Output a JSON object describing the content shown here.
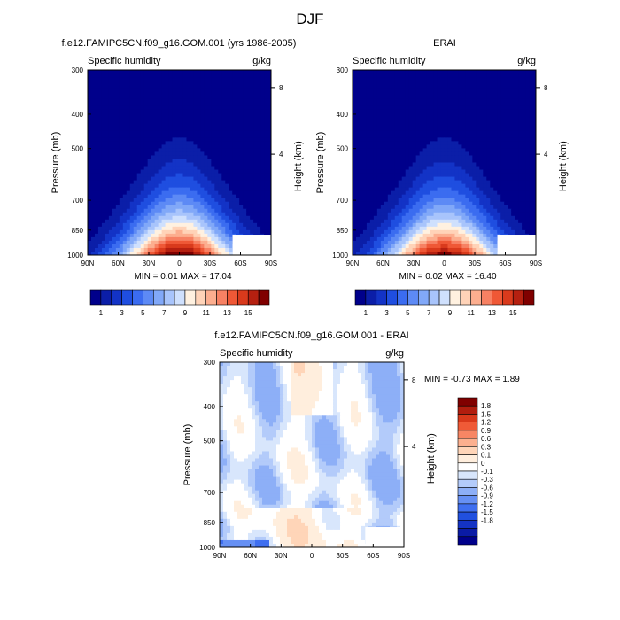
{
  "figure": {
    "title": "DJF"
  },
  "chart_data": [
    {
      "type": "heatmap",
      "title": "f.e12.FAMIPC5CN.f09_g16.GOM.001 (yrs 1986-2005)",
      "subtitle_left": "Specific humidity",
      "subtitle_right": "g/kg",
      "ylabel": "Pressure (mb)",
      "ylabel_right": "Height (km)",
      "x_ticks": [
        "90N",
        "60N",
        "30N",
        "0",
        "30S",
        "60S",
        "90S"
      ],
      "y_ticks": [
        "300",
        "400",
        "500",
        "700",
        "850",
        "1000"
      ],
      "y_ticks_right": [
        "8",
        "4"
      ],
      "xlim": [
        90,
        -90
      ],
      "ylim": [
        1000,
        300
      ],
      "y_scale": "log",
      "min_label": "MIN =  0.01  MAX =  17.04",
      "min": 0.01,
      "max": 17.04,
      "colorbar": {
        "orientation": "horizontal",
        "colors": [
          "#00008b",
          "#0b1ea8",
          "#1333c6",
          "#1f4ee0",
          "#3b6cf0",
          "#5d8af5",
          "#81a8f8",
          "#a8c4fb",
          "#cfe0fd",
          "#fff1e0",
          "#ffd3b8",
          "#fcae8f",
          "#f78163",
          "#ef5836",
          "#d93a1c",
          "#b52010",
          "#800000"
        ],
        "labels": [
          "1",
          "3",
          "5",
          "7",
          "9",
          "11",
          "13",
          "15"
        ]
      }
    },
    {
      "type": "heatmap",
      "title": "ERAI",
      "subtitle_left": "Specific humidity",
      "subtitle_right": "g/kg",
      "ylabel": "Pressure (mb)",
      "ylabel_right": "Height (km)",
      "x_ticks": [
        "90N",
        "60N",
        "30N",
        "0",
        "30S",
        "60S",
        "90S"
      ],
      "y_ticks": [
        "300",
        "400",
        "500",
        "700",
        "850",
        "1000"
      ],
      "y_ticks_right": [
        "8",
        "4"
      ],
      "xlim": [
        90,
        -90
      ],
      "ylim": [
        1000,
        300
      ],
      "y_scale": "log",
      "min_label": "MIN =  0.02  MAX =  16.40",
      "min": 0.02,
      "max": 16.4,
      "colorbar": {
        "orientation": "horizontal",
        "colors": [
          "#00008b",
          "#0b1ea8",
          "#1333c6",
          "#1f4ee0",
          "#3b6cf0",
          "#5d8af5",
          "#81a8f8",
          "#a8c4fb",
          "#cfe0fd",
          "#fff1e0",
          "#ffd3b8",
          "#fcae8f",
          "#f78163",
          "#ef5836",
          "#d93a1c",
          "#b52010",
          "#800000"
        ],
        "labels": [
          "1",
          "3",
          "5",
          "7",
          "9",
          "11",
          "13",
          "15"
        ]
      }
    },
    {
      "type": "heatmap",
      "title": "f.e12.FAMIPC5CN.f09_g16.GOM.001 - ERAI",
      "subtitle_left": "Specific humidity",
      "subtitle_right": "g/kg",
      "ylabel": "Pressure (mb)",
      "ylabel_right": "Height (km)",
      "x_ticks": [
        "90N",
        "60N",
        "30N",
        "0",
        "30S",
        "60S",
        "90S"
      ],
      "y_ticks": [
        "300",
        "400",
        "500",
        "700",
        "850",
        "1000"
      ],
      "y_ticks_right": [
        "8",
        "4"
      ],
      "xlim": [
        90,
        -90
      ],
      "ylim": [
        1000,
        300
      ],
      "y_scale": "log",
      "min_label": "MIN = -0.73  MAX =   1.89",
      "min": -0.73,
      "max": 1.89,
      "colorbar": {
        "orientation": "vertical",
        "colors": [
          "#00008b",
          "#0a1ba5",
          "#1433c4",
          "#2150df",
          "#3f6ff0",
          "#6690f4",
          "#8daff7",
          "#b3cbfa",
          "#d8e6fc",
          "#ffffff",
          "#ffeedd",
          "#ffd5b8",
          "#fcb08f",
          "#f78664",
          "#ef5a37",
          "#d8391b",
          "#b11d0e",
          "#800000"
        ],
        "labels": [
          "-1.8",
          "-1.5",
          "-1.2",
          "-0.9",
          "-0.6",
          "-0.3",
          "-0.1",
          "0",
          "0.1",
          "0.3",
          "0.6",
          "0.9",
          "1.2",
          "1.5",
          "1.8"
        ]
      }
    }
  ]
}
